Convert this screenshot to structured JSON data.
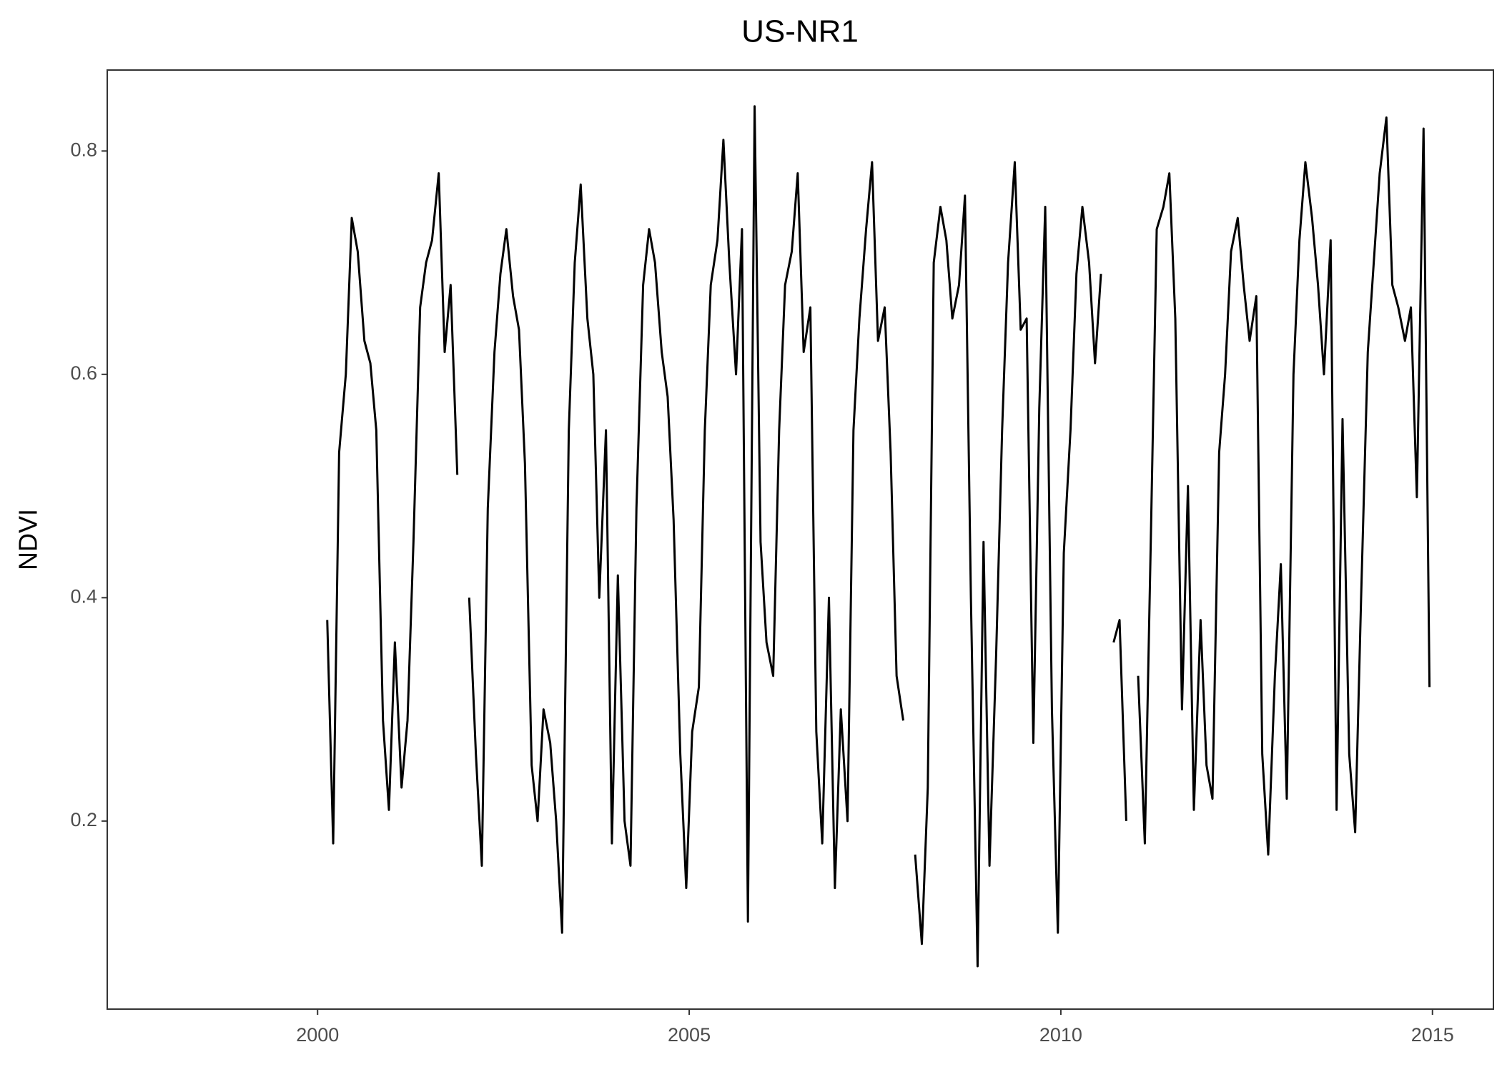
{
  "chart_data": {
    "type": "line",
    "title": "US-NR1",
    "y_label": "NDVI",
    "x": [
      2000.04,
      2000.13,
      2000.21,
      2000.29,
      2000.38,
      2000.46,
      2000.54,
      2000.63,
      2000.71,
      2000.79,
      2000.88,
      2000.96,
      2001.04,
      2001.13,
      2001.21,
      2001.29,
      2001.38,
      2001.46,
      2001.54,
      2001.63,
      2001.71,
      2001.79,
      2001.88,
      2001.96,
      2002.04,
      2002.13,
      2002.21,
      2002.29,
      2002.38,
      2002.46,
      2002.54,
      2002.63,
      2002.71,
      2002.79,
      2002.88,
      2002.96,
      2003.04,
      2003.13,
      2003.21,
      2003.29,
      2003.38,
      2003.46,
      2003.54,
      2003.63,
      2003.71,
      2003.79,
      2003.88,
      2003.96,
      2004.04,
      2004.13,
      2004.21,
      2004.29,
      2004.38,
      2004.46,
      2004.54,
      2004.63,
      2004.71,
      2004.79,
      2004.88,
      2004.96,
      2005.04,
      2005.13,
      2005.21,
      2005.29,
      2005.38,
      2005.46,
      2005.54,
      2005.63,
      2005.71,
      2005.79,
      2005.88,
      2005.96,
      2006.04,
      2006.13,
      2006.21,
      2006.29,
      2006.38,
      2006.46,
      2006.54,
      2006.63,
      2006.71,
      2006.79,
      2006.88,
      2006.96,
      2007.04,
      2007.13,
      2007.21,
      2007.29,
      2007.38,
      2007.46,
      2007.54,
      2007.63,
      2007.71,
      2007.79,
      2007.88,
      2007.96,
      2008.04,
      2008.13,
      2008.21,
      2008.29,
      2008.38,
      2008.46,
      2008.54,
      2008.63,
      2008.71,
      2008.79,
      2008.88,
      2008.96,
      2009.04,
      2009.13,
      2009.21,
      2009.29,
      2009.38,
      2009.46,
      2009.54,
      2009.63,
      2009.71,
      2009.79,
      2009.88,
      2009.96,
      2010.04,
      2010.13,
      2010.21,
      2010.29,
      2010.38,
      2010.46,
      2010.54,
      2010.63,
      2010.71,
      2010.79,
      2010.88,
      2010.96,
      2011.04,
      2011.13,
      2011.21,
      2011.29,
      2011.38,
      2011.46,
      2011.54,
      2011.63,
      2011.71,
      2011.79,
      2011.88,
      2011.96,
      2012.04,
      2012.13,
      2012.21,
      2012.29,
      2012.38,
      2012.46,
      2012.54,
      2012.63,
      2012.71,
      2012.79,
      2012.88,
      2012.96,
      2013.04,
      2013.13,
      2013.21,
      2013.29,
      2013.38,
      2013.46,
      2013.54,
      2013.63,
      2013.71,
      2013.79,
      2013.88,
      2013.96,
      2014.04,
      2014.13,
      2014.21,
      2014.29,
      2014.38,
      2014.46,
      2014.54,
      2014.63,
      2014.71,
      2014.79,
      2014.88,
      2014.96
    ],
    "series": [
      {
        "color": "#000000",
        "values": [
          null,
          0.38,
          0.18,
          0.53,
          0.6,
          0.74,
          0.71,
          0.63,
          0.61,
          0.55,
          0.29,
          0.21,
          0.36,
          0.23,
          0.29,
          0.45,
          0.66,
          0.7,
          0.72,
          0.78,
          0.62,
          0.68,
          0.51,
          null,
          0.4,
          0.26,
          0.16,
          0.48,
          0.62,
          0.69,
          0.73,
          0.67,
          0.64,
          0.52,
          0.25,
          0.2,
          0.3,
          0.27,
          0.2,
          0.1,
          0.55,
          0.7,
          0.77,
          0.65,
          0.6,
          0.4,
          0.55,
          0.18,
          0.42,
          0.2,
          0.16,
          0.48,
          0.68,
          0.73,
          0.7,
          0.62,
          0.58,
          0.47,
          0.26,
          0.14,
          0.28,
          0.32,
          0.55,
          0.68,
          0.72,
          0.81,
          0.7,
          0.6,
          0.73,
          0.11,
          0.84,
          0.45,
          0.36,
          0.33,
          0.55,
          0.68,
          0.71,
          0.78,
          0.62,
          0.66,
          0.28,
          0.18,
          0.4,
          0.14,
          0.3,
          0.2,
          0.55,
          0.65,
          0.73,
          0.79,
          0.63,
          0.66,
          0.53,
          0.33,
          0.29,
          null,
          0.17,
          0.09,
          0.23,
          0.7,
          0.75,
          0.72,
          0.65,
          0.68,
          0.76,
          0.4,
          0.07,
          0.45,
          0.16,
          0.35,
          0.55,
          0.7,
          0.79,
          0.64,
          0.65,
          0.27,
          0.57,
          0.75,
          0.3,
          0.1,
          0.44,
          0.55,
          0.69,
          0.75,
          0.7,
          0.61,
          0.69,
          null,
          0.36,
          0.38,
          0.2,
          null,
          0.33,
          0.18,
          0.45,
          0.73,
          0.75,
          0.78,
          0.65,
          0.3,
          0.5,
          0.21,
          0.38,
          0.25,
          0.22,
          0.53,
          0.6,
          0.71,
          0.74,
          0.68,
          0.63,
          0.67,
          0.26,
          0.17,
          0.33,
          0.43,
          0.22,
          0.6,
          0.72,
          0.79,
          0.74,
          0.68,
          0.6,
          0.72,
          0.21,
          0.56,
          0.26,
          0.19,
          0.4,
          0.62,
          0.7,
          0.78,
          0.83,
          0.68,
          0.66,
          0.63,
          0.66,
          0.49,
          0.82,
          0.32
        ]
      }
    ],
    "xlim": [
      1997.17,
      2015.82
    ],
    "ylim": [
      0.0316,
      0.8725
    ],
    "xticks": [
      2000,
      2005,
      2010,
      2015
    ],
    "yticks": [
      0.2,
      0.4,
      0.6,
      0.8
    ],
    "grid": false
  }
}
